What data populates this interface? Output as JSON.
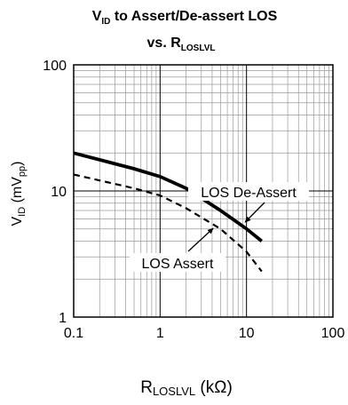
{
  "chart_data": {
    "type": "line",
    "title": {
      "line1_main": "V",
      "line1_sub": "ID",
      "line1_rest": " to Assert/De-assert LOS",
      "line2_main": "vs. R",
      "line2_sub": "LOSLVL"
    },
    "xlabel": {
      "main": "R",
      "sub": "LOSLVL",
      "rest": " (kΩ)"
    },
    "ylabel": {
      "main": "V",
      "sub": "ID",
      "mid": " (mV",
      "sub2": "pp",
      "rest": ")"
    },
    "x_scale": "log",
    "y_scale": "log",
    "xlim": [
      0.1,
      100
    ],
    "ylim": [
      1,
      100
    ],
    "x_ticks": [
      {
        "value": 0.1,
        "label": "0.1"
      },
      {
        "value": 1,
        "label": "1"
      },
      {
        "value": 10,
        "label": "10"
      },
      {
        "value": 100,
        "label": "100"
      }
    ],
    "y_ticks": [
      {
        "value": 1,
        "label": "1"
      },
      {
        "value": 10,
        "label": "10"
      },
      {
        "value": 100,
        "label": "100"
      }
    ],
    "grid": true,
    "series": [
      {
        "name": "LOS De-Assert",
        "style": "solid",
        "x": [
          0.1,
          0.5,
          1,
          2,
          5,
          10,
          15
        ],
        "y": [
          20,
          15,
          13,
          10.5,
          7,
          5,
          4
        ]
      },
      {
        "name": "LOS Assert",
        "style": "dashed",
        "x": [
          0.1,
          0.5,
          1,
          2,
          5,
          10,
          15
        ],
        "y": [
          13.5,
          10.5,
          9.2,
          7.3,
          5,
          3.3,
          2.3
        ]
      }
    ],
    "annotations": [
      {
        "text": "LOS De-Assert",
        "series": 0
      },
      {
        "text": "LOS Assert",
        "series": 1
      }
    ]
  }
}
